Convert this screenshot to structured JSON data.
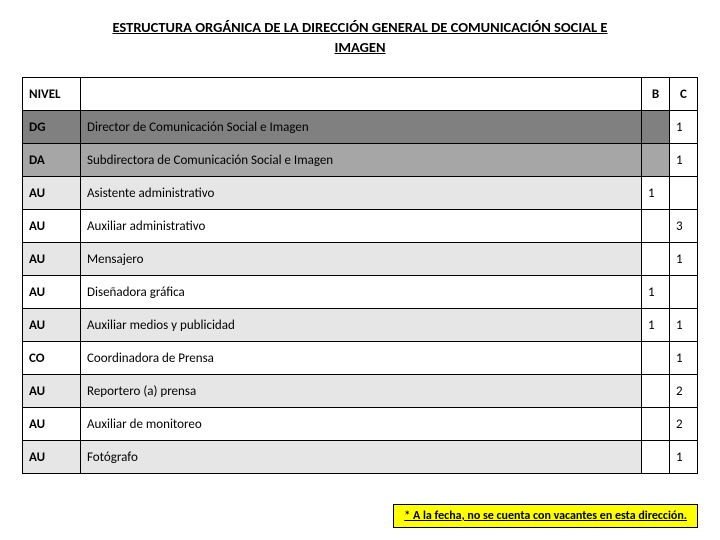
{
  "title_line1": "ESTRUCTURA ORGÁNICA DE LA DIRECCIÓN GENERAL DE COMUNICACIÓN SOCIAL E",
  "title_line2": "IMAGEN",
  "headers": {
    "nivel": "NIVEL",
    "desc": "",
    "b": "B",
    "c": "C"
  },
  "rows": [
    {
      "nivel": "DG",
      "desc": "Director de Comunicación Social e Imagen",
      "b": "",
      "c": "1",
      "style": "dark",
      "b_white": false,
      "c_white": true
    },
    {
      "nivel": "DA",
      "desc": "Subdirectora de Comunicación Social e Imagen",
      "b": "",
      "c": "1",
      "style": "med",
      "b_white": false,
      "c_white": true
    },
    {
      "nivel": "AU",
      "desc": "Asistente administrativo",
      "b": "1",
      "c": "",
      "style": "light",
      "b_white": true,
      "c_white": true
    },
    {
      "nivel": "AU",
      "desc": "Auxiliar administrativo",
      "b": "",
      "c": "3",
      "style": "white",
      "b_white": true,
      "c_white": true
    },
    {
      "nivel": "AU",
      "desc": "Mensajero",
      "b": "",
      "c": "1",
      "style": "light",
      "b_white": true,
      "c_white": true
    },
    {
      "nivel": "AU",
      "desc": "Diseñadora gráfica",
      "b": "1",
      "c": "",
      "style": "white",
      "b_white": true,
      "c_white": true
    },
    {
      "nivel": "AU",
      "desc": "Auxiliar medios y publicidad",
      "b": "1",
      "c": "1",
      "style": "light",
      "b_white": true,
      "c_white": true
    },
    {
      "nivel": "CO",
      "desc": "Coordinadora de Prensa",
      "b": "",
      "c": "1",
      "style": "white",
      "b_white": true,
      "c_white": true
    },
    {
      "nivel": "AU",
      "desc": "Reportero (a) prensa",
      "b": "",
      "c": "2",
      "style": "light",
      "b_white": true,
      "c_white": true
    },
    {
      "nivel": "AU",
      "desc": "Auxiliar de monitoreo",
      "b": "",
      "c": "2",
      "style": "white",
      "b_white": true,
      "c_white": true
    },
    {
      "nivel": "AU",
      "desc": "Fotógrafo",
      "b": "",
      "c": "1",
      "style": "light",
      "b_white": true,
      "c_white": true
    }
  ],
  "footnote": "* A la fecha, no se cuenta con vacantes en esta dirección.",
  "colors": {
    "dark": "#808080",
    "med": "#a6a6a6",
    "light": "#e6e6e6",
    "white": "#ffffff",
    "footnote_bg": "#ffff00",
    "border": "#000000"
  }
}
